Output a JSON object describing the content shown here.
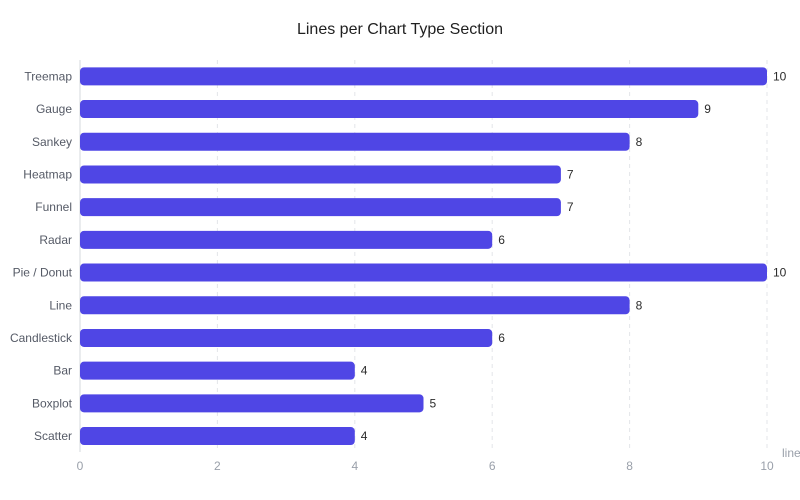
{
  "chart_data": {
    "type": "bar",
    "orientation": "horizontal",
    "title": "Lines per Chart Type Section",
    "categories": [
      "Treemap",
      "Gauge",
      "Sankey",
      "Heatmap",
      "Funnel",
      "Radar",
      "Pie / Donut",
      "Line",
      "Candlestick",
      "Bar",
      "Boxplot",
      "Scatter"
    ],
    "values": [
      10,
      9,
      8,
      7,
      7,
      6,
      10,
      8,
      6,
      4,
      5,
      4
    ],
    "xlabel": "line",
    "ylabel": "",
    "xlim": [
      0,
      10
    ],
    "xticks": [
      0,
      2,
      4,
      6,
      8,
      10
    ],
    "grid": true,
    "data_labels": true,
    "bar_color": "#4f46e5"
  }
}
